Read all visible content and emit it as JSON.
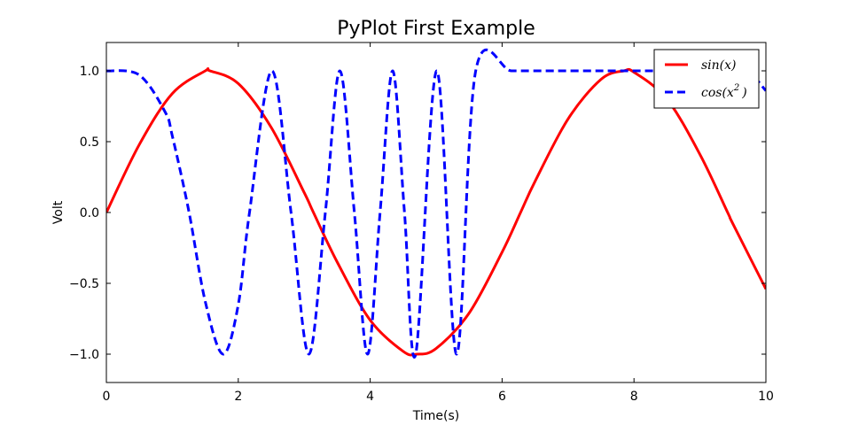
{
  "chart_data": {
    "type": "line",
    "title": "PyPlot First Example",
    "xlabel": "Time(s)",
    "ylabel": "Volt",
    "xlim": [
      0,
      10
    ],
    "ylim": [
      -1.2,
      1.2
    ],
    "xticks": [
      0,
      2,
      4,
      6,
      8,
      10
    ],
    "xtick_labels": [
      "0",
      "2",
      "4",
      "6",
      "8",
      "10"
    ],
    "yticks": [
      -1.0,
      -0.5,
      0.0,
      0.5,
      1.0
    ],
    "ytick_labels": [
      "−1.0",
      "−0.5",
      "0.0",
      "0.5",
      "1.0"
    ],
    "grid": false,
    "legend": {
      "position": "top-right",
      "entries": [
        {
          "main": "sin(x)",
          "sup": ""
        },
        {
          "main": "cos(x",
          "sup": "2",
          "tail": ")"
        }
      ]
    },
    "series": [
      {
        "function": "sin(x)",
        "color": "#ff0000",
        "linestyle": "solid",
        "x": [
          0,
          0.5,
          1,
          1.5,
          1.57,
          2,
          2.5,
          3,
          3.14,
          3.5,
          4,
          4.5,
          4.71,
          5,
          5.5,
          6,
          6.28,
          6.5,
          7,
          7.5,
          7.85,
          8,
          8.5,
          9,
          9.42,
          9.5,
          10
        ],
        "y": [
          0,
          0.48,
          0.84,
          1.0,
          1.0,
          0.91,
          0.6,
          0.14,
          0.0,
          -0.35,
          -0.76,
          -0.98,
          -1.0,
          -0.96,
          -0.71,
          -0.28,
          0.0,
          0.22,
          0.66,
          0.94,
          1.0,
          0.99,
          0.8,
          0.41,
          0.0,
          -0.08,
          -0.54
        ]
      },
      {
        "function": "cos(x^2)",
        "color": "#0000ff",
        "linestyle": "dashed",
        "x": [
          0,
          0.5,
          0.89,
          1,
          1.25,
          1.5,
          1.77,
          2,
          2.17,
          2.51,
          2.8,
          3.07,
          3.32,
          3.54,
          3.76,
          3.96,
          4.15,
          4.34,
          4.52,
          4.69,
          5.01,
          5.31,
          5.6,
          6.14,
          6.64,
          7.09,
          7.52,
          7.93,
          8.31,
          8.68,
          9.04,
          9.38,
          9.71,
          10
        ],
        "y": [
          1.0,
          0.97,
          0.71,
          0.54,
          0.01,
          -0.63,
          -1.0,
          -0.65,
          0.0,
          1.0,
          0.0,
          -1.0,
          0.0,
          1.0,
          0.0,
          -1.0,
          0.0,
          1.0,
          0.0,
          -1.0,
          1.0,
          -1.0,
          1.0,
          1.0,
          1.0,
          1.0,
          1.0,
          1.0,
          1.0,
          1.0,
          1.0,
          1.0,
          1.0,
          0.86
        ]
      }
    ]
  }
}
